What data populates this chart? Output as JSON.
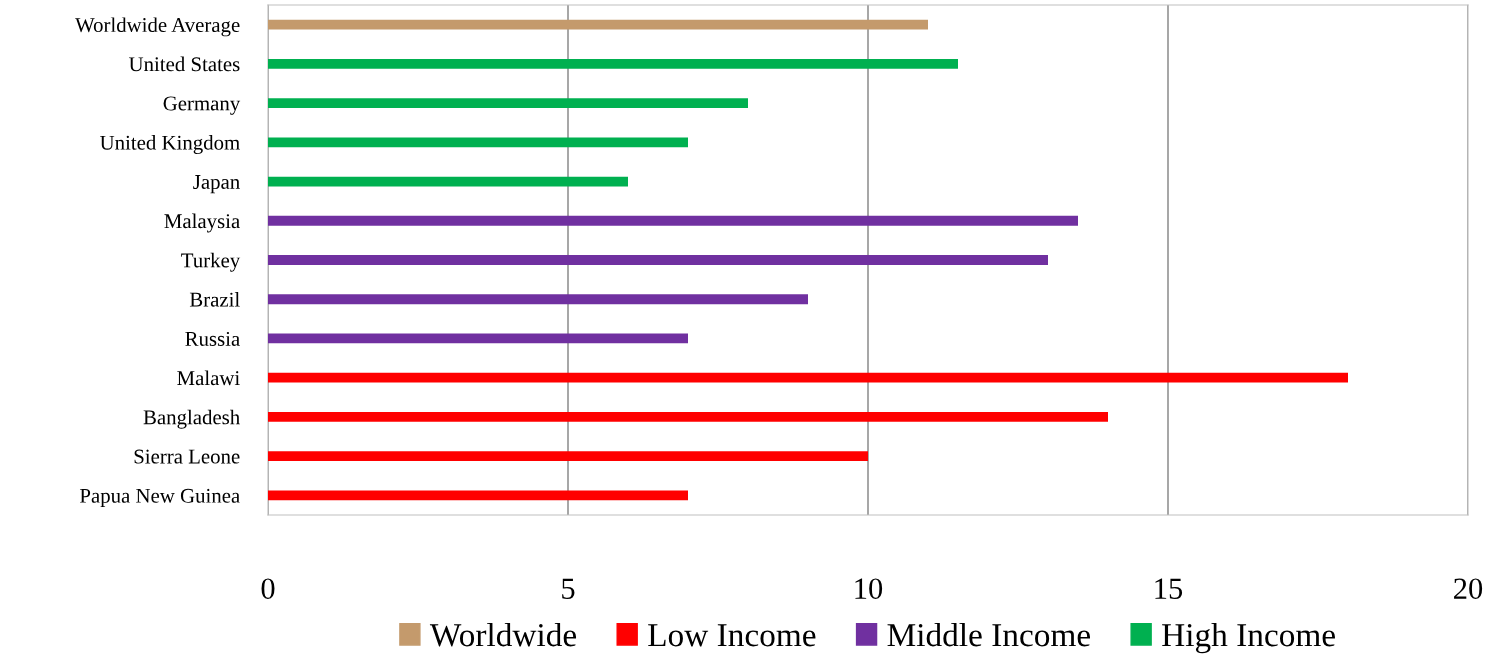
{
  "chart_data": {
    "type": "bar",
    "orientation": "horizontal",
    "categories": [
      "Worldwide Average",
      "United States",
      "Germany",
      "United Kingdom",
      "Japan",
      "Malaysia",
      "Turkey",
      "Brazil",
      "Russia",
      "Malawi",
      "Bangladesh",
      "Sierra Leone",
      "Papua New Guinea"
    ],
    "series": [
      {
        "name": "Worldwide",
        "color": "#c49a6c",
        "values": [
          11,
          null,
          null,
          null,
          null,
          null,
          null,
          null,
          null,
          null,
          null,
          null,
          null
        ]
      },
      {
        "name": "Low Income",
        "color": "#ff0000",
        "values": [
          null,
          null,
          null,
          null,
          null,
          null,
          null,
          null,
          null,
          18,
          14,
          10,
          7
        ]
      },
      {
        "name": "Middle Income",
        "color": "#7030a0",
        "values": [
          null,
          null,
          null,
          null,
          null,
          13.5,
          13,
          9,
          7,
          null,
          null,
          null,
          null
        ]
      },
      {
        "name": "High Income",
        "color": "#00b050",
        "values": [
          null,
          11.5,
          8,
          7,
          6,
          null,
          null,
          null,
          null,
          null,
          null,
          null,
          null
        ]
      }
    ],
    "xlim": [
      0,
      20
    ],
    "xticks": [
      0,
      5,
      10,
      15,
      20
    ],
    "grid": "x",
    "legend": "bottom"
  }
}
